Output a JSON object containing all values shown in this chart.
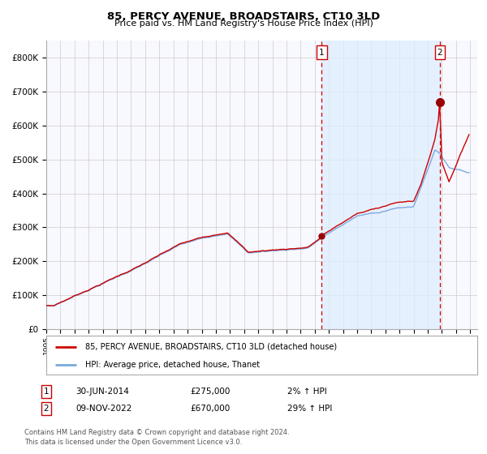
{
  "title": "85, PERCY AVENUE, BROADSTAIRS, CT10 3LD",
  "subtitle": "Price paid vs. HM Land Registry's House Price Index (HPI)",
  "legend_line1": "85, PERCY AVENUE, BROADSTAIRS, CT10 3LD (detached house)",
  "legend_line2": "HPI: Average price, detached house, Thanet",
  "transaction1_date": "30-JUN-2014",
  "transaction1_price": "£275,000",
  "transaction1_hpi": "2% ↑ HPI",
  "transaction1_year": 2014.5,
  "transaction1_value": 275000,
  "transaction2_date": "09-NOV-2022",
  "transaction2_price": "£670,000",
  "transaction2_hpi": "29% ↑ HPI",
  "transaction2_year": 2022.86,
  "transaction2_value": 670000,
  "footnote1": "Contains HM Land Registry data © Crown copyright and database right 2024.",
  "footnote2": "This data is licensed under the Open Government Licence v3.0.",
  "red_line_color": "#cc0000",
  "blue_line_color": "#7aaadd",
  "fill_color": "#ddeeff",
  "grid_color": "#cccccc",
  "background_color": "#ffffff",
  "plot_bg_color": "#f8f8ff",
  "marker_color": "#990000",
  "dashed_line_color": "#cc0000",
  "box_color": "#cc0000",
  "ylim": [
    0,
    850000
  ],
  "xlim_start": 1995,
  "xlim_end": 2025.5,
  "yticks": [
    0,
    100000,
    200000,
    300000,
    400000,
    500000,
    600000,
    700000,
    800000
  ],
  "ytick_labels": [
    "£0",
    "£100K",
    "£200K",
    "£300K",
    "£400K",
    "£500K",
    "£600K",
    "£700K",
    "£800K"
  ],
  "xticks": [
    1995,
    1996,
    1997,
    1998,
    1999,
    2000,
    2001,
    2002,
    2003,
    2004,
    2005,
    2006,
    2007,
    2008,
    2009,
    2010,
    2011,
    2012,
    2013,
    2014,
    2015,
    2016,
    2017,
    2018,
    2019,
    2020,
    2021,
    2022,
    2023,
    2024,
    2025
  ]
}
